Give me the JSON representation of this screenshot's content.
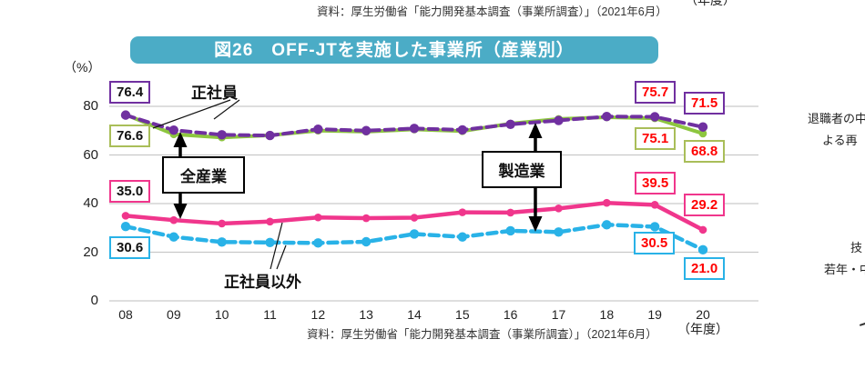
{
  "header": {
    "source_top": "資料：厚生労働省「能力開発基本調査（事業所調査）」（2021年6月）",
    "cropped_year_unit": "（年度）"
  },
  "title": "図26　OFF-JTを実施した事業所（産業別）",
  "colors": {
    "title_bg": "#4BACC6",
    "grid": "#C9C9C9",
    "red_value_text": "#FF0000",
    "purple": "#7030A0",
    "green_line": "#8DC63F",
    "green_box": "#A9BE59",
    "pink": "#F0368C",
    "cyan": "#29B2E7"
  },
  "y_axis": {
    "unit": "（%）",
    "ticks": [
      "80",
      "60",
      "40",
      "20",
      "0"
    ],
    "tick_values": [
      80,
      60,
      40,
      20,
      0
    ]
  },
  "x_axis": {
    "labels": [
      "08",
      "09",
      "10",
      "11",
      "12",
      "13",
      "14",
      "15",
      "16",
      "17",
      "18",
      "19",
      "20"
    ],
    "unit": "（年度）"
  },
  "footer": {
    "source_bottom": "資料：厚生労働省「能力開発基本調査（事業所調査）」（2021年6月）"
  },
  "annotations": {
    "regular": "正社員",
    "non_regular": "正社員以外",
    "all_industries": "全産業",
    "manufacturing": "製造業"
  },
  "value_labels": {
    "left": [
      {
        "text": "76.4",
        "series": "manufacturing-regular",
        "border": "#7030A0"
      },
      {
        "text": "76.6",
        "series": "all-industries-regular",
        "border": "#A9BE59"
      },
      {
        "text": "35.0",
        "series": "all-industries-non-regular",
        "border": "#F0368C"
      },
      {
        "text": "30.6",
        "series": "manufacturing-non-regular",
        "border": "#29B2E7"
      }
    ],
    "right": [
      {
        "text": "75.7",
        "series": "manufacturing-regular",
        "border": "#7030A0"
      },
      {
        "text": "71.5",
        "series": "manufacturing-regular",
        "border": "#7030A0"
      },
      {
        "text": "75.1",
        "series": "all-industries-regular",
        "border": "#A9BE59"
      },
      {
        "text": "68.8",
        "series": "all-industries-regular",
        "border": "#A9BE59"
      },
      {
        "text": "39.5",
        "series": "all-industries-non-regular",
        "border": "#F0368C"
      },
      {
        "text": "29.2",
        "series": "all-industries-non-regular",
        "border": "#F0368C"
      },
      {
        "text": "30.5",
        "series": "manufacturing-non-regular",
        "border": "#29B2E7"
      },
      {
        "text": "21.0",
        "series": "manufacturing-non-regular",
        "border": "#29B2E7"
      }
    ]
  },
  "right_edge_fragments": [
    "退職者の中",
    "よる再",
    "技",
    "若年・中"
  ],
  "chart_data": {
    "type": "line",
    "x": [
      "08",
      "09",
      "10",
      "11",
      "12",
      "13",
      "14",
      "15",
      "16",
      "17",
      "18",
      "19",
      "20"
    ],
    "xlabel": "年度",
    "ylabel": "%",
    "ylim": [
      0,
      85
    ],
    "grid": true,
    "legend_position": "in-chart annotation boxes",
    "series": [
      {
        "name": "全産業・正社員",
        "style": "solid",
        "color": "#8DC63F",
        "width": 4,
        "values": [
          76.6,
          68.5,
          67.2,
          68.1,
          70.0,
          69.6,
          70.5,
          69.8,
          72.9,
          74.8,
          75.5,
          75.1,
          68.8
        ]
      },
      {
        "name": "製造業・正社員",
        "style": "dashed",
        "color": "#7030A0",
        "width": 4,
        "values": [
          76.4,
          70.2,
          68.3,
          68.0,
          70.6,
          70.0,
          70.9,
          70.3,
          72.6,
          74.2,
          75.8,
          75.7,
          71.5
        ]
      },
      {
        "name": "全産業・正社員以外",
        "style": "solid",
        "color": "#F0368C",
        "width": 4.5,
        "values": [
          35.0,
          33.2,
          31.8,
          32.6,
          34.3,
          34.0,
          34.2,
          36.4,
          36.3,
          38.0,
          40.3,
          39.5,
          29.2
        ]
      },
      {
        "name": "製造業・正社員以外",
        "style": "dashed",
        "color": "#29B2E7",
        "width": 4.5,
        "values": [
          30.6,
          26.3,
          24.2,
          24.0,
          23.8,
          24.3,
          27.5,
          26.3,
          28.8,
          28.3,
          31.3,
          30.5,
          21.0
        ]
      }
    ],
    "labeled_points": {
      "製造業・正社員": {
        "08": 76.4,
        "19": 75.7,
        "20": 71.5
      },
      "全産業・正社員": {
        "08": 76.6,
        "19": 75.1,
        "20": 68.8
      },
      "全産業・正社員以外": {
        "08": 35.0,
        "19": 39.5,
        "20": 29.2
      },
      "製造業・正社員以外": {
        "08": 30.6,
        "19": 30.5,
        "20": 21.0
      }
    }
  }
}
